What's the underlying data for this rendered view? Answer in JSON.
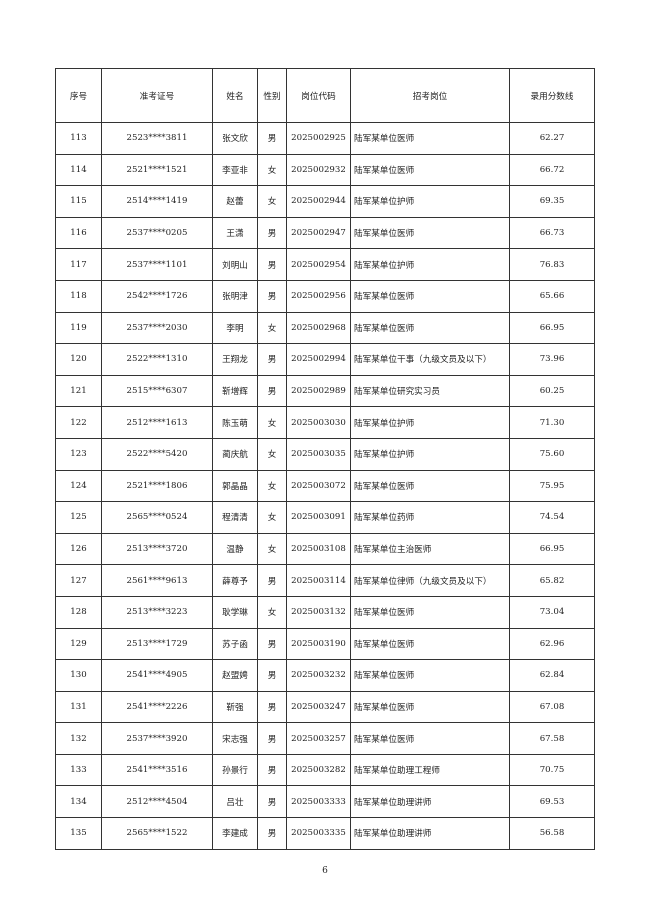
{
  "table": {
    "headers": [
      "序号",
      "准考证号",
      "姓名",
      "性别",
      "岗位代码",
      "招考岗位",
      "录用分数线"
    ],
    "rows": [
      [
        "113",
        "2523****3811",
        "张文欣",
        "男",
        "2025002925",
        "陆军某单位医师",
        "62.27"
      ],
      [
        "114",
        "2521****1521",
        "李亚非",
        "女",
        "2025002932",
        "陆军某单位医师",
        "66.72"
      ],
      [
        "115",
        "2514****1419",
        "赵蕾",
        "女",
        "2025002944",
        "陆军某单位护师",
        "69.35"
      ],
      [
        "116",
        "2537****0205",
        "王潇",
        "男",
        "2025002947",
        "陆军某单位医师",
        "66.73"
      ],
      [
        "117",
        "2537****1101",
        "刘明山",
        "男",
        "2025002954",
        "陆军某单位护师",
        "76.83"
      ],
      [
        "118",
        "2542****1726",
        "张明津",
        "男",
        "2025002956",
        "陆军某单位医师",
        "65.66"
      ],
      [
        "119",
        "2537****2030",
        "李明",
        "女",
        "2025002968",
        "陆军某单位医师",
        "66.95"
      ],
      [
        "120",
        "2522****1310",
        "王翔龙",
        "男",
        "2025002994",
        "陆军某单位干事（九级文员及以下）",
        "73.96"
      ],
      [
        "121",
        "2515****6307",
        "靳增辉",
        "男",
        "2025002989",
        "陆军某单位研究实习员",
        "60.25"
      ],
      [
        "122",
        "2512****1613",
        "陈玉萌",
        "女",
        "2025003030",
        "陆军某单位护师",
        "71.30"
      ],
      [
        "123",
        "2522****5420",
        "蔺庆航",
        "女",
        "2025003035",
        "陆军某单位护师",
        "75.60"
      ],
      [
        "124",
        "2521****1806",
        "郭晶晶",
        "女",
        "2025003072",
        "陆军某单位医师",
        "75.95"
      ],
      [
        "125",
        "2565****0524",
        "程清清",
        "女",
        "2025003091",
        "陆军某单位药师",
        "74.54"
      ],
      [
        "126",
        "2513****3720",
        "温静",
        "女",
        "2025003108",
        "陆军某单位主治医师",
        "66.95"
      ],
      [
        "127",
        "2561****9613",
        "薛尊予",
        "男",
        "2025003114",
        "陆军某单位律师（九级文员及以下）",
        "65.82"
      ],
      [
        "128",
        "2513****3223",
        "耿学琳",
        "女",
        "2025003132",
        "陆军某单位医师",
        "73.04"
      ],
      [
        "129",
        "2513****1729",
        "苏子函",
        "男",
        "2025003190",
        "陆军某单位医师",
        "62.96"
      ],
      [
        "130",
        "2541****4905",
        "赵盟娉",
        "男",
        "2025003232",
        "陆军某单位医师",
        "62.84"
      ],
      [
        "131",
        "2541****2226",
        "靳强",
        "男",
        "2025003247",
        "陆军某单位医师",
        "67.08"
      ],
      [
        "132",
        "2537****3920",
        "宋志强",
        "男",
        "2025003257",
        "陆军某单位医师",
        "67.58"
      ],
      [
        "133",
        "2541****3516",
        "孙景行",
        "男",
        "2025003282",
        "陆军某单位助理工程师",
        "70.75"
      ],
      [
        "134",
        "2512****4504",
        "吕壮",
        "男",
        "2025003333",
        "陆军某单位助理讲师",
        "69.53"
      ],
      [
        "135",
        "2565****1522",
        "李建成",
        "男",
        "2025003335",
        "陆军某单位助理讲师",
        "56.58"
      ]
    ]
  },
  "page_number": "6"
}
